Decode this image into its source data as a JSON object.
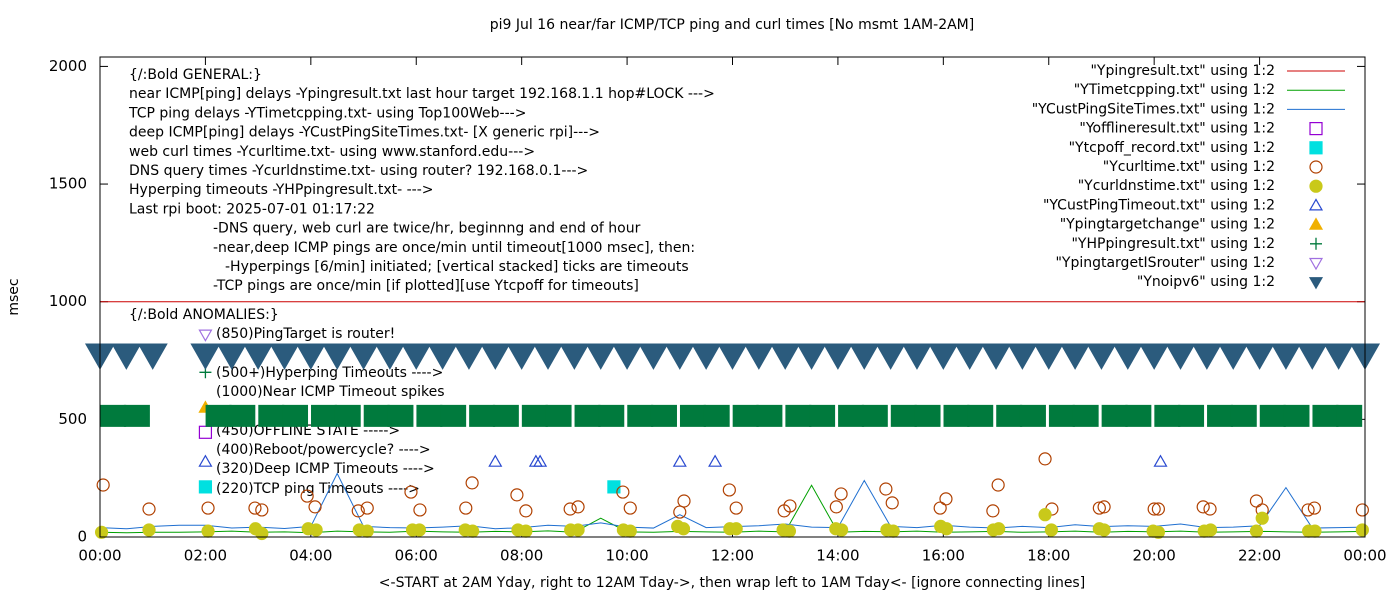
{
  "chart_data": {
    "type": "mixed",
    "title": "pi9 Jul 16  near/far ICMP/TCP ping and curl times [No msmt 1AM-2AM]",
    "ylabel": "msec",
    "xlabel": "<-START at 2AM Yday, right to 12AM Tday->, then wrap left to 1AM Tday<- [ignore connecting lines]",
    "xlim": [
      0,
      24
    ],
    "ylim": [
      0,
      2040
    ],
    "xticks": [
      {
        "value": 0,
        "label": "00:00"
      },
      {
        "value": 2,
        "label": "02:00"
      },
      {
        "value": 4,
        "label": "04:00"
      },
      {
        "value": 6,
        "label": "06:00"
      },
      {
        "value": 8,
        "label": "08:00"
      },
      {
        "value": 10,
        "label": "10:00"
      },
      {
        "value": 12,
        "label": "12:00"
      },
      {
        "value": 14,
        "label": "14:00"
      },
      {
        "value": 16,
        "label": "16:00"
      },
      {
        "value": 18,
        "label": "18:00"
      },
      {
        "value": 20,
        "label": "20:00"
      },
      {
        "value": 22,
        "label": "22:00"
      },
      {
        "value": 24,
        "label": "00:00"
      }
    ],
    "yticks": [
      0,
      500,
      1000,
      1500,
      2000
    ],
    "legend": "top-right",
    "notes": [
      "{/:Bold GENERAL:}",
      "near ICMP[ping] delays -Ypingresult.txt last hour target 192.168.1.1 hop#LOCK --->",
      "TCP ping delays -YTimetcpping.txt- using Top100Web--->",
      "deep ICMP[ping] delays -YCustPingSiteTimes.txt- [X generic rpi]--->",
      "web curl times -Ycurltime.txt- using www.stanford.edu--->",
      "DNS query times -Ycurldnstime.txt- using router? 192.168.0.1--->",
      "Hyperping timeouts -YHPpingresult.txt- --->",
      "Last rpi boot: 2025-07-01 01:17:22",
      "-DNS query, web curl are twice/hr, beginnng and end of hour",
      "-near,deep ICMP pings are once/min until timeout[1000 msec], then:",
      "-Hyperpings [6/min] initiated; [vertical stacked] ticks are timeouts",
      "-TCP pings are once/min [if plotted][use Ytcpoff for timeouts]"
    ],
    "anomalies": [
      "{/:Bold ANOMALIES:}",
      "(850)PingTarget is router!",
      "(500+)Hyperping Timeouts ---->",
      "(1000)Near ICMP Timeout spikes",
      "(450)OFFLINE STATE ----->",
      "(400)Reboot/powercycle? ---->",
      "(320)Deep ICMP Timeouts ---->",
      "(220)TCP ping Timeouts ---->"
    ],
    "series": [
      {
        "name": "\"Ypingresult.txt\" using 1:2",
        "color": "#cc0000",
        "style": "line",
        "x": [
          0,
          24
        ],
        "values": [
          1000,
          1000
        ]
      },
      {
        "name": "\"YTimetcpping.txt\" using 1:2",
        "color": "#00a000",
        "style": "line",
        "x": [
          0,
          0.5,
          1,
          1.5,
          2,
          2.5,
          3,
          3.5,
          4,
          4.5,
          5,
          5.5,
          6,
          6.5,
          7,
          7.5,
          8,
          8.5,
          9,
          9.5,
          10,
          10.5,
          11,
          11.5,
          12,
          12.5,
          13,
          13.5,
          14,
          14.5,
          15,
          15.5,
          16,
          16.5,
          17,
          17.5,
          18,
          18.5,
          19,
          19.5,
          20,
          20.5,
          21,
          21.5,
          22,
          22.5,
          23,
          23.5,
          24
        ],
        "values": [
          20,
          18,
          20,
          20,
          22,
          25,
          20,
          22,
          18,
          25,
          22,
          20,
          25,
          22,
          20,
          24,
          22,
          26,
          20,
          80,
          22,
          20,
          24,
          22,
          20,
          25,
          22,
          220,
          20,
          24,
          22,
          25,
          20,
          22,
          24,
          20,
          22,
          25,
          20,
          24,
          22,
          25,
          20,
          22,
          24,
          22,
          20,
          22,
          24
        ]
      },
      {
        "name": "\"YCustPingSiteTimes.txt\" using 1:2",
        "color": "#1f6fd0",
        "style": "line",
        "x": [
          0,
          0.5,
          1,
          1.5,
          2,
          2.5,
          3,
          3.5,
          4,
          4.5,
          5,
          5.5,
          6,
          6.5,
          7,
          7.5,
          8,
          8.5,
          9,
          9.5,
          10,
          10.5,
          11,
          11.5,
          12,
          12.5,
          13,
          13.5,
          14,
          14.5,
          15,
          15.5,
          16,
          16.5,
          17,
          17.5,
          18,
          18.5,
          19,
          19.5,
          20,
          20.5,
          21,
          21.5,
          22,
          22.5,
          23,
          23.5,
          24
        ],
        "values": [
          40,
          35,
          45,
          50,
          50,
          38,
          42,
          36,
          45,
          270,
          45,
          40,
          38,
          42,
          48,
          35,
          40,
          50,
          45,
          60,
          42,
          38,
          95,
          40,
          44,
          48,
          55,
          42,
          40,
          240,
          45,
          40,
          50,
          42,
          38,
          45,
          40,
          52,
          44,
          48,
          45,
          55,
          40,
          42,
          48,
          210,
          38,
          40,
          42
        ]
      },
      {
        "name": "\"Yofflineresult.txt\" using 1:2",
        "color": "#9400d3",
        "style": "square-open",
        "x": [
          2
        ],
        "values": [
          445
        ]
      },
      {
        "name": "\"Ytcpoff_record.txt\" using 1:2",
        "color": "#00e0e0",
        "style": "square",
        "x": [
          2,
          9.75
        ],
        "values": [
          213,
          213
        ]
      },
      {
        "name": "\"Ycurltime.txt\" using 1:2",
        "color": "#b04000",
        "style": "circle-open",
        "x": [
          0.06,
          0.93,
          2.05,
          2.94,
          3.07,
          3.93,
          4.08,
          4.9,
          5.07,
          5.9,
          6.07,
          6.94,
          7.06,
          7.91,
          8.08,
          8.92,
          9.07,
          9.92,
          10.06,
          11.0,
          11.08,
          11.94,
          12.07,
          12.98,
          13.09,
          13.97,
          14.06,
          14.91,
          15.03,
          15.94,
          16.05,
          16.94,
          17.04,
          17.93,
          18.06,
          18.96,
          19.05,
          20.0,
          20.08,
          20.93,
          21.06,
          21.94,
          22.05,
          22.92,
          23.04,
          23.95
        ],
        "values": [
          221,
          119,
          123,
          123,
          115,
          174,
          128,
          111,
          123,
          191,
          115,
          123,
          230,
          179,
          111,
          119,
          128,
          191,
          123,
          106,
          153,
          200,
          123,
          111,
          132,
          128,
          183,
          204,
          145,
          123,
          162,
          111,
          221,
          332,
          119,
          123,
          128,
          119,
          119,
          128,
          119,
          153,
          115,
          115,
          123,
          115
        ]
      },
      {
        "name": "\"Ycurldnstime.txt\" using 1:2",
        "color": "#c9c91a",
        "style": "circle",
        "x": [
          0.03,
          0.93,
          2.05,
          2.95,
          3.07,
          3.95,
          4.1,
          4.92,
          5.07,
          5.93,
          6.06,
          6.93,
          7.07,
          7.93,
          8.08,
          8.93,
          9.07,
          9.93,
          10.06,
          10.96,
          11.07,
          11.95,
          12.07,
          12.96,
          13.08,
          13.96,
          14.07,
          14.93,
          15.05,
          15.95,
          16.06,
          16.95,
          17.05,
          17.93,
          18.05,
          18.96,
          19.05,
          19.98,
          20.08,
          20.95,
          21.07,
          21.94,
          22.05,
          22.93,
          23.05,
          23.95
        ],
        "values": [
          20,
          30,
          25,
          35,
          15,
          35,
          30,
          30,
          25,
          30,
          30,
          30,
          25,
          30,
          25,
          30,
          30,
          30,
          25,
          45,
          35,
          35,
          35,
          30,
          25,
          35,
          30,
          30,
          25,
          45,
          35,
          30,
          35,
          95,
          30,
          35,
          30,
          25,
          20,
          25,
          30,
          25,
          80,
          25,
          25,
          30
        ]
      },
      {
        "name": "\"YCustPingTimeout.txt\" using 1:2",
        "color": "#2a4ad0",
        "style": "triangle-open",
        "x": [
          2,
          7.5,
          8.27,
          8.35,
          11.0,
          11.67,
          20.12
        ],
        "values": [
          320,
          320,
          320,
          320,
          320,
          320,
          320
        ]
      },
      {
        "name": "\"Ypingtargetchange\" using 1:2",
        "color": "#f0b000",
        "style": "triangle",
        "x": [
          2
        ],
        "values": [
          550
        ]
      },
      {
        "name": "\"YHPpingresult.txt\" using 1:2",
        "color": "#007a3d",
        "style": "plus",
        "x": [
          2,
          0.25,
          0.7,
          2.25,
          2.7,
          3.25,
          3.7,
          4.25,
          4.7,
          5.25,
          5.7,
          6.25,
          6.7,
          7.25,
          7.7,
          8.25,
          8.7,
          9.25,
          9.7,
          10.25,
          10.7,
          11.25,
          11.7,
          12.25,
          12.7,
          13.25,
          13.7,
          14.25,
          14.7,
          15.25,
          15.7,
          16.25,
          16.7,
          17.25,
          17.7,
          18.25,
          18.7,
          19.25,
          19.7,
          20.25,
          20.7,
          21.25,
          21.7,
          22.25,
          22.7,
          23.25,
          23.7
        ],
        "values": [
          700,
          515,
          515,
          515,
          515,
          515,
          515,
          515,
          515,
          515,
          515,
          515,
          515,
          515,
          515,
          515,
          515,
          515,
          515,
          515,
          515,
          515,
          515,
          515,
          515,
          515,
          515,
          515,
          515,
          515,
          515,
          515,
          515,
          515,
          515,
          515,
          515,
          515,
          515,
          515,
          515,
          515,
          515,
          515,
          515,
          515,
          515
        ]
      },
      {
        "name": "\"YpingtargetISrouter\" using 1:2",
        "color": "#a070e0",
        "style": "triangle-down-open",
        "x": [
          2
        ],
        "values": [
          860
        ]
      },
      {
        "name": "\"Ynoipv6\" using 1:2",
        "color": "#2b5b7d",
        "style": "triangle-down",
        "x": [
          0,
          0.5,
          1,
          2,
          2.5,
          3,
          3.5,
          4,
          4.5,
          5,
          5.5,
          6,
          6.5,
          7,
          7.5,
          8,
          8.5,
          9,
          9.5,
          10,
          10.5,
          11,
          11.5,
          12,
          12.5,
          13,
          13.5,
          14,
          14.5,
          15,
          15.5,
          16,
          16.5,
          17,
          17.5,
          18,
          18.5,
          19,
          19.5,
          20,
          20.5,
          21,
          21.5,
          22,
          22.5,
          23,
          23.5,
          24
        ],
        "values": [
          775,
          775,
          775,
          775,
          775,
          775,
          775,
          775,
          775,
          775,
          775,
          775,
          775,
          775,
          775,
          775,
          775,
          775,
          775,
          775,
          775,
          775,
          775,
          775,
          775,
          775,
          775,
          775,
          775,
          775,
          775,
          775,
          775,
          775,
          775,
          775,
          775,
          775,
          775,
          775,
          775,
          775,
          775,
          775,
          775,
          775,
          775,
          775
        ]
      }
    ]
  }
}
